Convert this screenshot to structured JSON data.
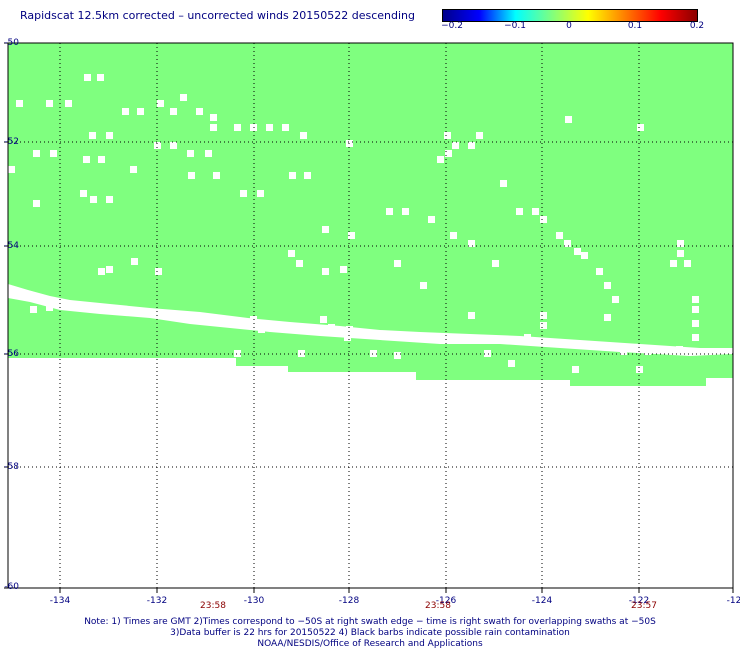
{
  "title": "Rapidscat 12.5km corrected – uncorrected winds 20150522 descending",
  "colorbar": {
    "ticks": [
      "−0.2",
      "−0.1",
      "0",
      "0.1",
      "0.2"
    ],
    "min": -0.2,
    "max": 0.2,
    "stops": [
      "#00008b",
      "#0000ff",
      "#00ffff",
      "#7fff7f",
      "#ffff00",
      "#ff8000",
      "#ff0000",
      "#8b0000"
    ]
  },
  "map": {
    "fill_color": "#7fff7f",
    "lon_ticks": [
      "-134",
      "-132",
      "-130",
      "-128",
      "-126",
      "-124",
      "-122",
      "-12"
    ],
    "lat_ticks": [
      "-50",
      "-52",
      "-54",
      "-56",
      "-58",
      "-60"
    ],
    "times": [
      "23:58",
      "23:58",
      "23:57"
    ],
    "gridlines": "dotted"
  },
  "notes": [
    "Note: 1) Times are GMT 2)Times correspond to −50S at right swath edge − time is right swath for overlapping swaths at −50S",
    "3)Data buffer is 22 hrs for 20150522 4) Black barbs indicate possible rain contamination",
    "NOAA/NESDIS/Office of Research and Applications"
  ]
}
